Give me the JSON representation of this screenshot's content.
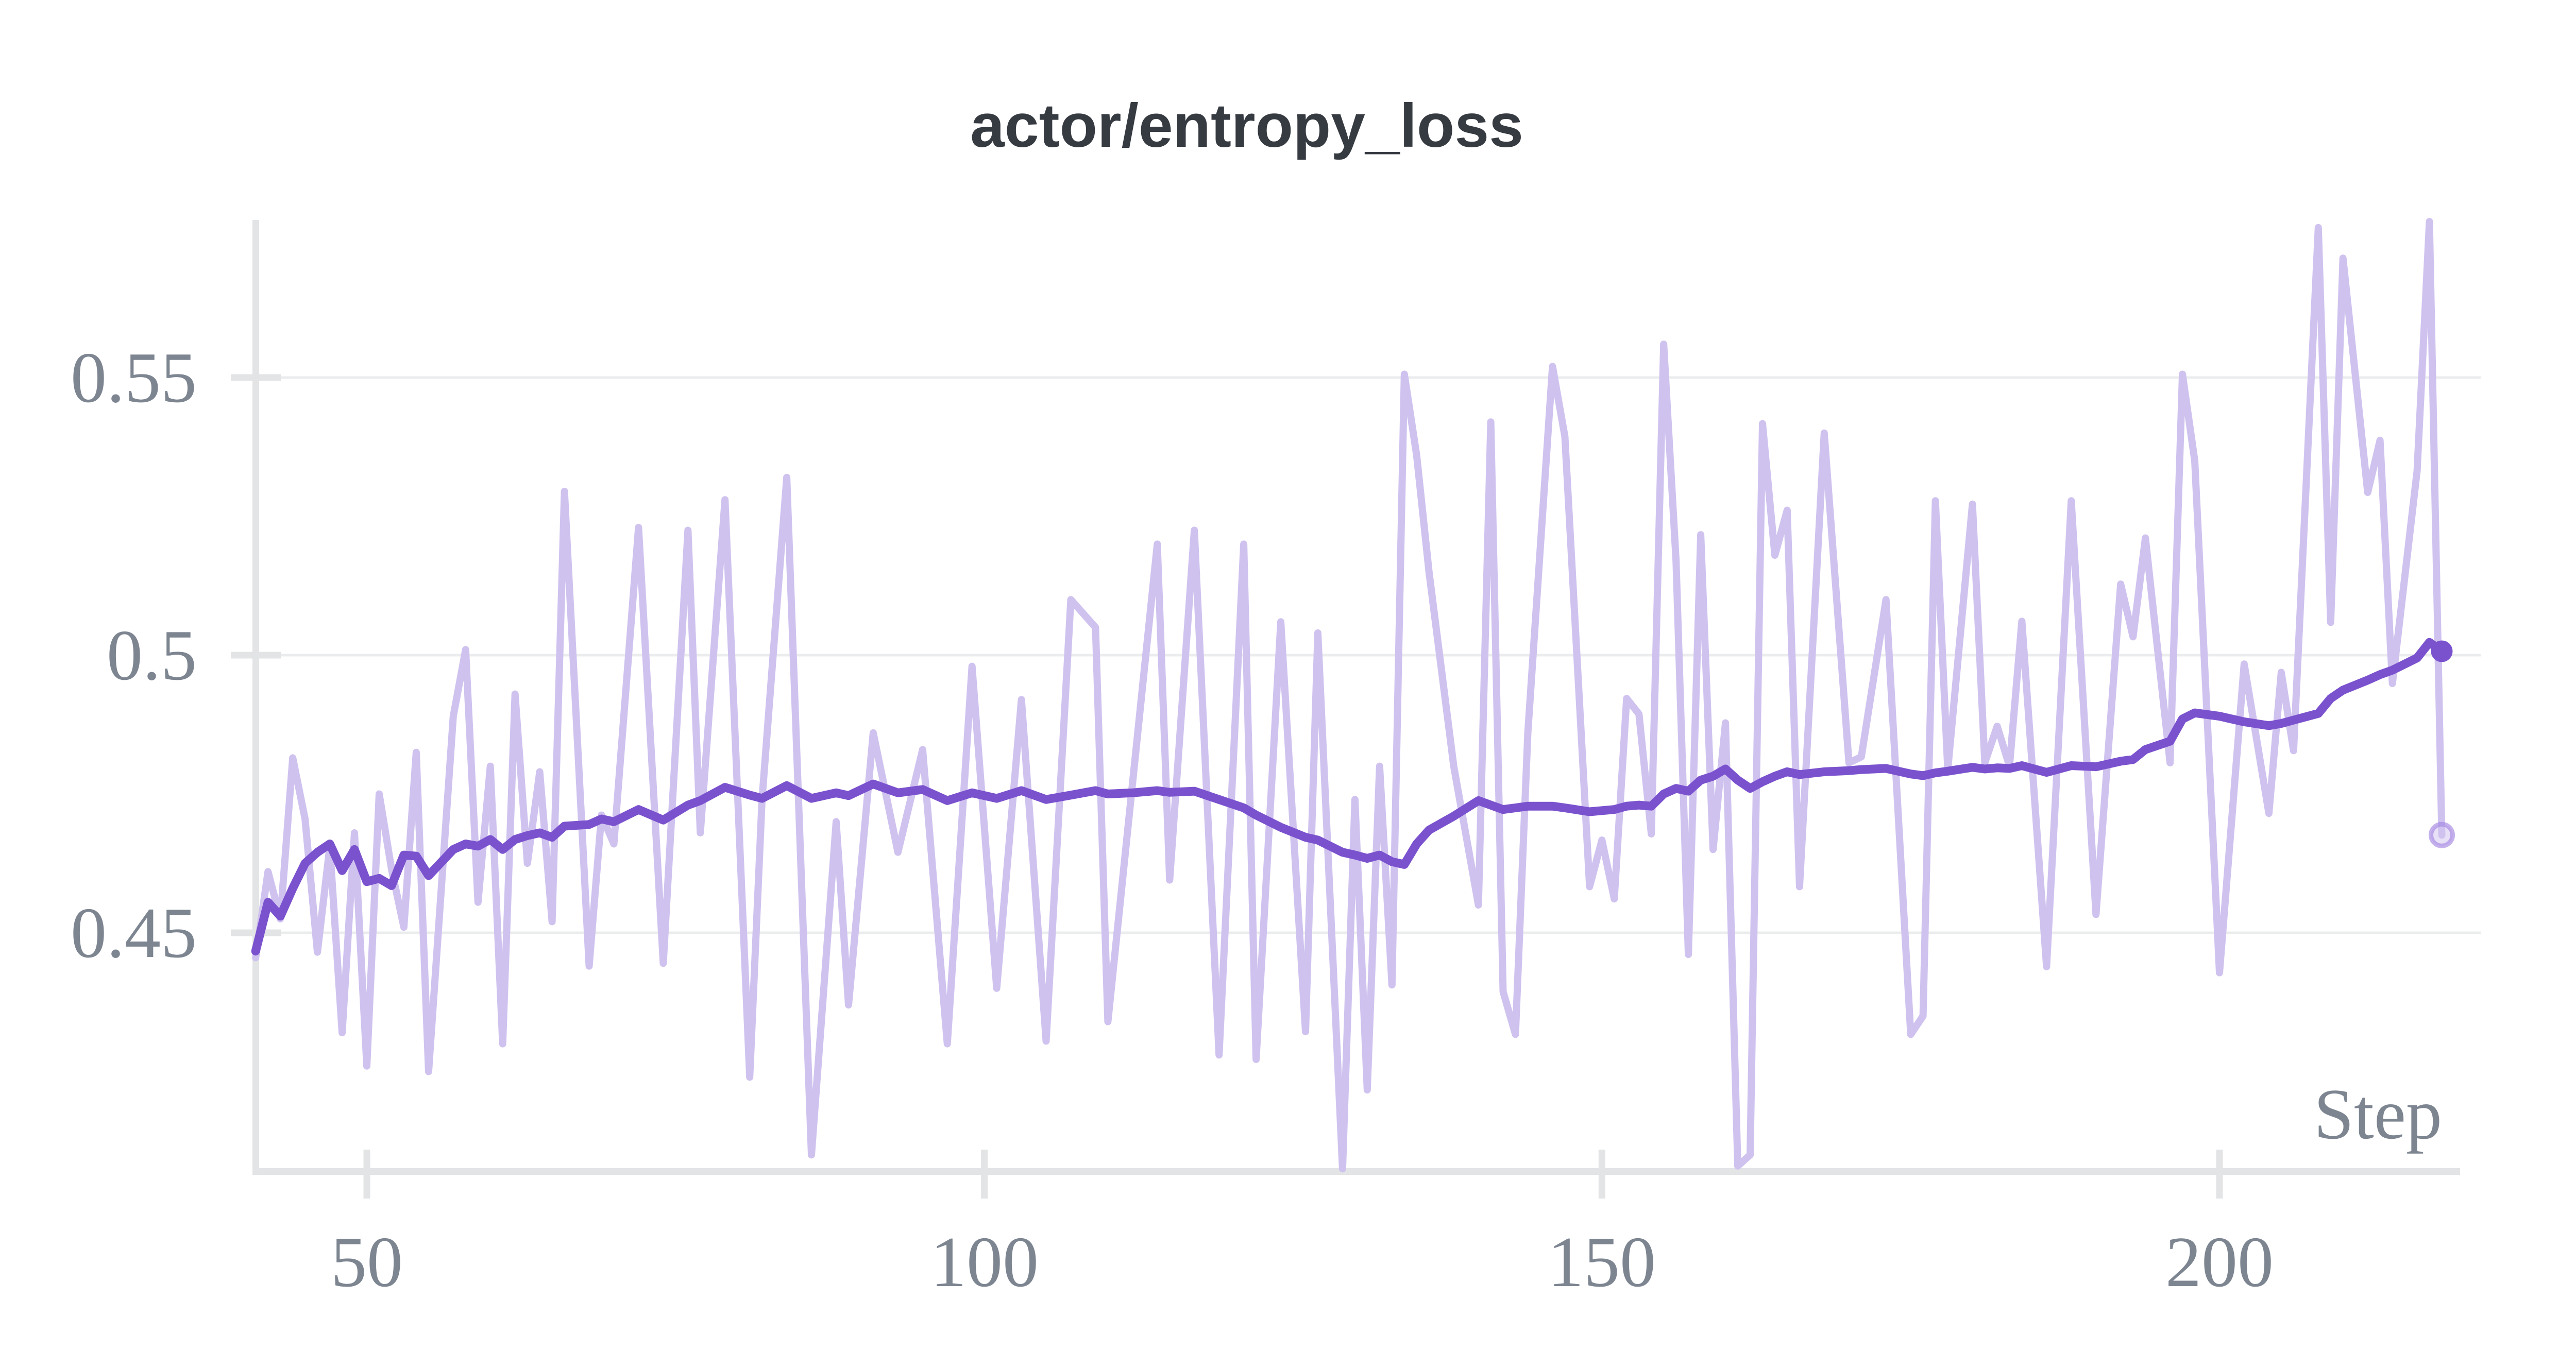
{
  "chart_data": {
    "type": "line",
    "title": "actor/entropy_loss",
    "xlabel": "Step",
    "ylabel": "",
    "legend": "none",
    "grid": "horizontal",
    "x_ticks": [
      50,
      100,
      150,
      200
    ],
    "x_tick_labels": [
      "50",
      "100",
      "150",
      "200"
    ],
    "y_ticks": [
      0.55,
      0.5,
      0.45
    ],
    "y_tick_labels": [
      "0.55",
      "0.5",
      "0.45"
    ],
    "xlim": [
      41,
      219.5
    ],
    "ylim": [
      0.407,
      0.578
    ],
    "colors": {
      "raw_line": "#CFC2EF",
      "smoothed_line": "#7B52CE",
      "end_dot": "#7B52CE",
      "raw_end_dot_fill": "rgba(207,194,239,0.5)",
      "raw_end_dot_ring": "rgba(164,135,226,0.65)",
      "gridline": "#ebecee",
      "axis": "#e3e4e6",
      "title_text": "#363a41",
      "tick_text": "#7d8591"
    },
    "series_names": [
      "raw",
      "smoothed"
    ],
    "points_format": [
      "step",
      "raw",
      "smoothed"
    ],
    "points": [
      [
        41,
        0.4455,
        0.4467
      ],
      [
        42,
        0.461,
        0.4555
      ],
      [
        43,
        0.4525,
        0.453
      ],
      [
        44,
        0.4815,
        0.458
      ],
      [
        45,
        0.4705,
        0.4625
      ],
      [
        46,
        0.4465,
        0.4645
      ],
      [
        47,
        0.4655,
        0.466
      ],
      [
        48,
        0.432,
        0.4612
      ],
      [
        49,
        0.468,
        0.465
      ],
      [
        50,
        0.426,
        0.4592
      ],
      [
        51,
        0.475,
        0.4598
      ],
      [
        52,
        0.4615,
        0.4585
      ],
      [
        53,
        0.451,
        0.464
      ],
      [
        54,
        0.4825,
        0.4638
      ],
      [
        55,
        0.425,
        0.4603
      ],
      [
        57,
        0.489,
        0.465
      ],
      [
        58,
        0.501,
        0.466
      ],
      [
        59,
        0.4555,
        0.4656
      ],
      [
        60,
        0.48,
        0.4668
      ],
      [
        61,
        0.43,
        0.465
      ],
      [
        62,
        0.493,
        0.4668
      ],
      [
        63,
        0.4625,
        0.4675
      ],
      [
        64,
        0.479,
        0.468
      ],
      [
        65,
        0.452,
        0.4672
      ],
      [
        66,
        0.5295,
        0.4692
      ],
      [
        68,
        0.444,
        0.4695
      ],
      [
        69,
        0.4712,
        0.4705
      ],
      [
        70,
        0.466,
        0.47
      ],
      [
        72,
        0.523,
        0.4722
      ],
      [
        74,
        0.4445,
        0.4703
      ],
      [
        76,
        0.5225,
        0.473
      ],
      [
        77,
        0.468,
        0.4738
      ],
      [
        79,
        0.528,
        0.4762
      ],
      [
        81,
        0.424,
        0.4748
      ],
      [
        82,
        0.474,
        0.4742
      ],
      [
        84,
        0.532,
        0.4765
      ],
      [
        86,
        0.41,
        0.4742
      ],
      [
        88,
        0.47,
        0.4752
      ],
      [
        89,
        0.437,
        0.4747
      ],
      [
        91,
        0.486,
        0.4768
      ],
      [
        93,
        0.4645,
        0.4752
      ],
      [
        95,
        0.483,
        0.4758
      ],
      [
        97,
        0.43,
        0.4738
      ],
      [
        99,
        0.498,
        0.4752
      ],
      [
        101,
        0.44,
        0.4742
      ],
      [
        103,
        0.492,
        0.4756
      ],
      [
        105,
        0.4305,
        0.474
      ],
      [
        107,
        0.51,
        0.4748
      ],
      [
        109,
        0.505,
        0.4756
      ],
      [
        110,
        0.434,
        0.475
      ],
      [
        112,
        0.477,
        0.4752
      ],
      [
        114,
        0.52,
        0.4756
      ],
      [
        115,
        0.4595,
        0.4753
      ],
      [
        117,
        0.5225,
        0.4755
      ],
      [
        119,
        0.428,
        0.474
      ],
      [
        121,
        0.52,
        0.4725
      ],
      [
        122,
        0.4272,
        0.4712
      ],
      [
        124,
        0.506,
        0.469
      ],
      [
        126,
        0.4322,
        0.4672
      ],
      [
        127,
        0.504,
        0.4667
      ],
      [
        129,
        0.4075,
        0.4645
      ],
      [
        130,
        0.474,
        0.464
      ],
      [
        131,
        0.4217,
        0.4634
      ],
      [
        132,
        0.48,
        0.464
      ],
      [
        133,
        0.4406,
        0.4628
      ],
      [
        134,
        0.5506,
        0.4623
      ],
      [
        135,
        0.536,
        0.466
      ],
      [
        136,
        0.515,
        0.4685
      ],
      [
        138,
        0.48,
        0.471
      ],
      [
        140,
        0.455,
        0.4738
      ],
      [
        141,
        0.542,
        0.473
      ],
      [
        142,
        0.4394,
        0.4722
      ],
      [
        143,
        0.4317,
        0.4725
      ],
      [
        144,
        0.486,
        0.4728
      ],
      [
        146,
        0.552,
        0.4728
      ],
      [
        147,
        0.5394,
        0.4725
      ],
      [
        149,
        0.4583,
        0.4718
      ],
      [
        150,
        0.4667,
        0.472
      ],
      [
        151,
        0.4561,
        0.4722
      ],
      [
        152,
        0.4922,
        0.4728
      ],
      [
        153,
        0.4894,
        0.473
      ],
      [
        154,
        0.4678,
        0.4728
      ],
      [
        155,
        0.556,
        0.475
      ],
      [
        156,
        0.517,
        0.476
      ],
      [
        157,
        0.4461,
        0.4755
      ],
      [
        158,
        0.5217,
        0.4775
      ],
      [
        159,
        0.465,
        0.4782
      ],
      [
        160,
        0.4878,
        0.4795
      ],
      [
        161,
        0.408,
        0.4775
      ],
      [
        162,
        0.41,
        0.476
      ],
      [
        163,
        0.5417,
        0.4772
      ],
      [
        164,
        0.518,
        0.4782
      ],
      [
        165,
        0.5261,
        0.479
      ],
      [
        166,
        0.4583,
        0.4785
      ],
      [
        168,
        0.54,
        0.479
      ],
      [
        170,
        0.4806,
        0.4792
      ],
      [
        171,
        0.4817,
        0.4794
      ],
      [
        173,
        0.51,
        0.4796
      ],
      [
        175,
        0.4317,
        0.4786
      ],
      [
        176,
        0.435,
        0.4783
      ],
      [
        177,
        0.5278,
        0.4788
      ],
      [
        178,
        0.4794,
        0.4791
      ],
      [
        180,
        0.5272,
        0.4798
      ],
      [
        181,
        0.4806,
        0.4795
      ],
      [
        182,
        0.4872,
        0.4797
      ],
      [
        183,
        0.48,
        0.4796
      ],
      [
        184,
        0.5061,
        0.4801
      ],
      [
        186,
        0.4439,
        0.4789
      ],
      [
        188,
        0.5278,
        0.4801
      ],
      [
        190,
        0.4533,
        0.4799
      ],
      [
        192,
        0.5128,
        0.4809
      ],
      [
        193,
        0.5033,
        0.4812
      ],
      [
        194,
        0.5211,
        0.483
      ],
      [
        196,
        0.4806,
        0.4845
      ],
      [
        197,
        0.5506,
        0.4885
      ],
      [
        198,
        0.535,
        0.4896
      ],
      [
        200,
        0.4428,
        0.489
      ],
      [
        202,
        0.4984,
        0.488
      ],
      [
        204,
        0.4715,
        0.4873
      ],
      [
        205,
        0.4969,
        0.4877
      ],
      [
        206,
        0.4828,
        0.4883
      ],
      [
        208,
        0.577,
        0.4895
      ],
      [
        209,
        0.5059,
        0.4922
      ],
      [
        210,
        0.5715,
        0.4937
      ],
      [
        212,
        0.5293,
        0.4955
      ],
      [
        213,
        0.5387,
        0.4965
      ],
      [
        214,
        0.4949,
        0.4973
      ],
      [
        216,
        0.5332,
        0.4995
      ],
      [
        217,
        0.5781,
        0.5023
      ],
      [
        218,
        0.4676,
        0.5007
      ]
    ],
    "final_values": {
      "smoothed": 0.5007,
      "raw": 0.4676
    }
  }
}
